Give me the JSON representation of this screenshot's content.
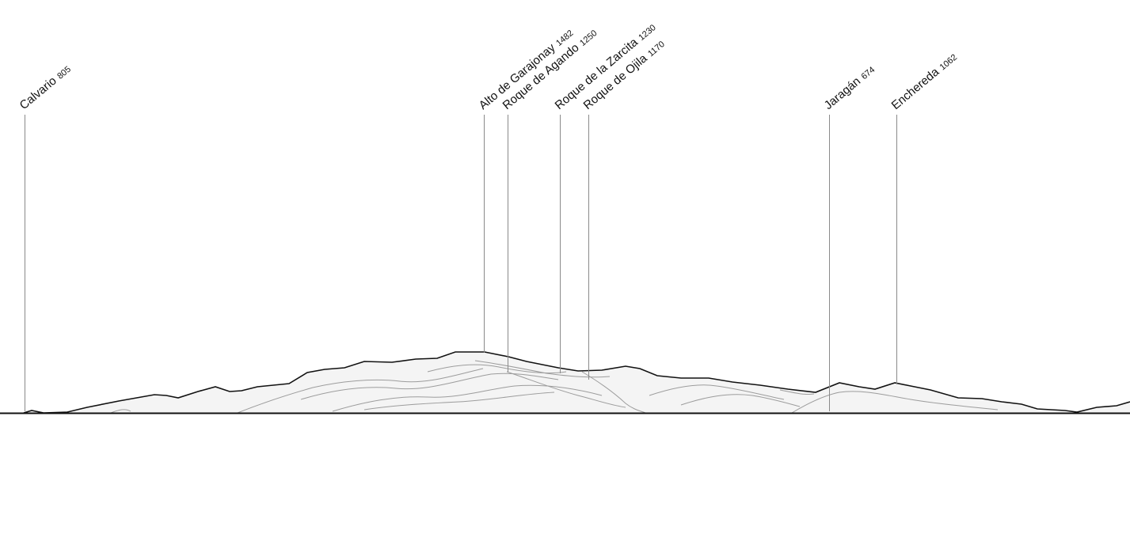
{
  "peaks": [
    {
      "name": "Calvario",
      "elevation": "805"
    },
    {
      "name": "Alto de Garajonay",
      "elevation": "1482"
    },
    {
      "name": "Roque de Agando",
      "elevation": "1250"
    },
    {
      "name": "Roque de la Zarcita",
      "elevation": "1230"
    },
    {
      "name": "Roque de Ojila",
      "elevation": "1170"
    },
    {
      "name": "Jaragán",
      "elevation": "674"
    },
    {
      "name": "Enchereda",
      "elevation": "1062"
    }
  ],
  "colors": {
    "background": "#ffffff",
    "ridge": "#111111",
    "leader": "#8a8a8a",
    "text": "#111111"
  }
}
